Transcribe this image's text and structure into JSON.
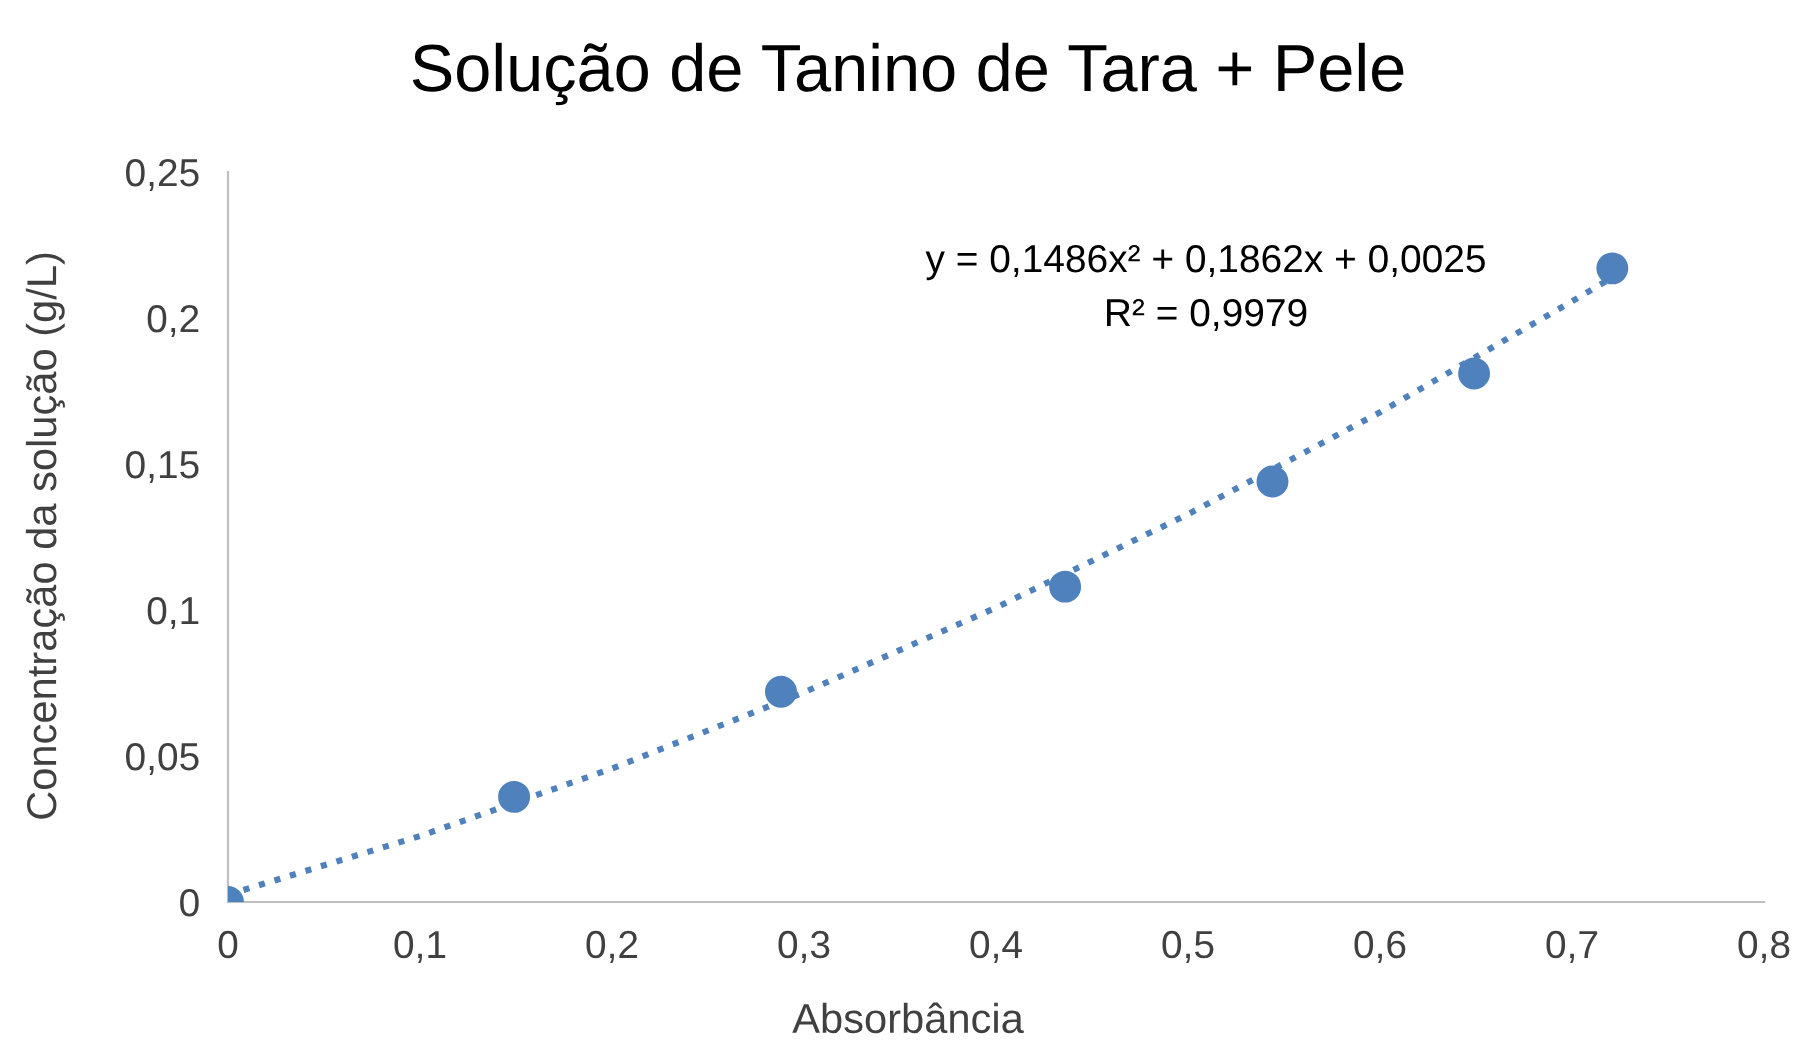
{
  "chart_data": {
    "type": "scatter",
    "title": "Solução de Tanino de Tara + Pele",
    "xlabel": "Absorbância",
    "ylabel": "Concentração da solução (g/L)",
    "xlim": [
      0,
      0.8
    ],
    "xticks": [
      {
        "value": 0,
        "label": "0"
      },
      {
        "value": 0.1,
        "label": "0,1"
      },
      {
        "value": 0.2,
        "label": "0,2"
      },
      {
        "value": 0.3,
        "label": "0,3"
      },
      {
        "value": 0.4,
        "label": "0,4"
      },
      {
        "value": 0.5,
        "label": "0,5"
      },
      {
        "value": 0.6,
        "label": "0,6"
      },
      {
        "value": 0.7,
        "label": "0,7"
      },
      {
        "value": 0.8,
        "label": "0,8"
      }
    ],
    "ylim": [
      0,
      0.25
    ],
    "yticks": [
      {
        "value": 0,
        "label": "0"
      },
      {
        "value": 0.05,
        "label": "0,05"
      },
      {
        "value": 0.1,
        "label": "0,1"
      },
      {
        "value": 0.15,
        "label": "0,15"
      },
      {
        "value": 0.2,
        "label": "0,2"
      },
      {
        "value": 0.25,
        "label": "0,25"
      }
    ],
    "grid": false,
    "marker": "circle",
    "series": [
      {
        "color": "#4f81bd",
        "x": [
          0,
          0.149,
          0.288,
          0.436,
          0.544,
          0.649,
          0.721
        ],
        "values": [
          0,
          0.036,
          0.072,
          0.108,
          0.144,
          0.181,
          0.217
        ]
      },
      {
        "type": "line",
        "color": "#4f81bd",
        "line_style": "dotted",
        "marker": "none",
        "x": [
          0,
          0.1,
          0.2,
          0.3,
          0.4,
          0.5,
          0.6,
          0.7,
          0.72
        ],
        "values": [
          0.0025,
          0.0226,
          0.0457,
          0.0718,
          0.1008,
          0.1328,
          0.1677,
          0.2057,
          0.2135
        ]
      }
    ],
    "annotations": [
      "y = 0,1486x² + 0,1862x + 0,0025",
      "R² = 0,9979"
    ]
  }
}
